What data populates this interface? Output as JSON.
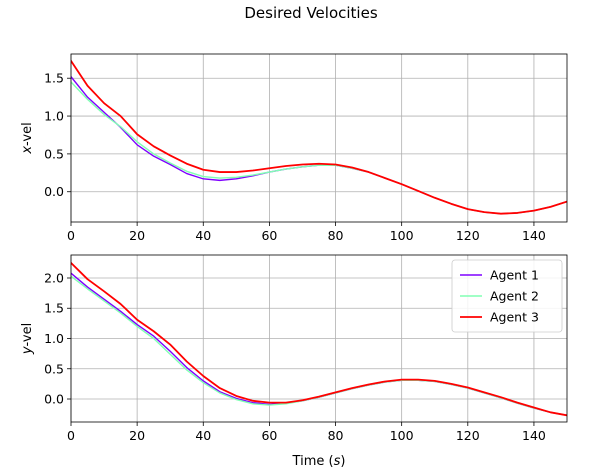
{
  "figure": {
    "title": "Desired Velocities"
  },
  "chart_data": [
    {
      "type": "line",
      "panel": "top",
      "title": "",
      "xlabel": "",
      "ylabel": "x-vel",
      "xlim": [
        0,
        150
      ],
      "ylim": [
        -0.4,
        1.82
      ],
      "xticks": [
        0,
        20,
        40,
        60,
        80,
        100,
        120,
        140
      ],
      "yticks": [
        0.0,
        0.5,
        1.0,
        1.5
      ],
      "grid": true,
      "series": [
        {
          "name": "Agent 1",
          "color": "#7f00ff",
          "points": [
            [
              0,
              1.52
            ],
            [
              5,
              1.25
            ],
            [
              10,
              1.05
            ],
            [
              15,
              0.85
            ],
            [
              20,
              0.62
            ],
            [
              25,
              0.47
            ],
            [
              30,
              0.36
            ],
            [
              35,
              0.24
            ],
            [
              40,
              0.17
            ],
            [
              45,
              0.15
            ],
            [
              50,
              0.17
            ],
            [
              55,
              0.21
            ],
            [
              60,
              0.26
            ],
            [
              65,
              0.3
            ],
            [
              70,
              0.33
            ],
            [
              75,
              0.35
            ],
            [
              80,
              0.35
            ],
            [
              85,
              0.31
            ],
            [
              90,
              0.26
            ],
            [
              95,
              0.18
            ],
            [
              100,
              0.1
            ],
            [
              105,
              0.01
            ],
            [
              110,
              -0.08
            ],
            [
              115,
              -0.16
            ],
            [
              120,
              -0.23
            ],
            [
              125,
              -0.27
            ],
            [
              130,
              -0.29
            ],
            [
              135,
              -0.28
            ],
            [
              140,
              -0.25
            ],
            [
              145,
              -0.2
            ],
            [
              150,
              -0.13
            ]
          ]
        },
        {
          "name": "Agent 2",
          "color": "#80ffb4",
          "points": [
            [
              0,
              1.45
            ],
            [
              5,
              1.22
            ],
            [
              10,
              1.02
            ],
            [
              15,
              0.86
            ],
            [
              20,
              0.66
            ],
            [
              25,
              0.5
            ],
            [
              30,
              0.38
            ],
            [
              35,
              0.27
            ],
            [
              40,
              0.2
            ],
            [
              45,
              0.18
            ],
            [
              50,
              0.19
            ],
            [
              55,
              0.22
            ],
            [
              60,
              0.26
            ],
            [
              65,
              0.3
            ],
            [
              70,
              0.33
            ],
            [
              75,
              0.35
            ],
            [
              80,
              0.35
            ],
            [
              85,
              0.31
            ],
            [
              90,
              0.26
            ],
            [
              95,
              0.18
            ],
            [
              100,
              0.1
            ],
            [
              105,
              0.01
            ],
            [
              110,
              -0.08
            ],
            [
              115,
              -0.16
            ],
            [
              120,
              -0.23
            ],
            [
              125,
              -0.27
            ],
            [
              130,
              -0.29
            ],
            [
              135,
              -0.28
            ],
            [
              140,
              -0.25
            ],
            [
              145,
              -0.2
            ],
            [
              150,
              -0.13
            ]
          ]
        },
        {
          "name": "Agent 3",
          "color": "#ff0000",
          "points": [
            [
              0,
              1.73
            ],
            [
              5,
              1.4
            ],
            [
              10,
              1.17
            ],
            [
              15,
              1.0
            ],
            [
              20,
              0.76
            ],
            [
              25,
              0.6
            ],
            [
              30,
              0.48
            ],
            [
              35,
              0.37
            ],
            [
              40,
              0.29
            ],
            [
              45,
              0.26
            ],
            [
              50,
              0.26
            ],
            [
              55,
              0.28
            ],
            [
              60,
              0.31
            ],
            [
              65,
              0.34
            ],
            [
              70,
              0.36
            ],
            [
              75,
              0.37
            ],
            [
              80,
              0.36
            ],
            [
              85,
              0.32
            ],
            [
              90,
              0.26
            ],
            [
              95,
              0.18
            ],
            [
              100,
              0.1
            ],
            [
              105,
              0.01
            ],
            [
              110,
              -0.08
            ],
            [
              115,
              -0.16
            ],
            [
              120,
              -0.23
            ],
            [
              125,
              -0.27
            ],
            [
              130,
              -0.29
            ],
            [
              135,
              -0.28
            ],
            [
              140,
              -0.25
            ],
            [
              145,
              -0.2
            ],
            [
              150,
              -0.13
            ]
          ]
        }
      ]
    },
    {
      "type": "line",
      "panel": "bottom",
      "title": "",
      "xlabel": "Time (s)",
      "ylabel": "y-vel",
      "xlim": [
        0,
        150
      ],
      "ylim": [
        -0.38,
        2.38
      ],
      "xticks": [
        0,
        20,
        40,
        60,
        80,
        100,
        120,
        140
      ],
      "yticks": [
        0.0,
        0.5,
        1.0,
        1.5,
        2.0
      ],
      "grid": true,
      "legend": "top-right",
      "series": [
        {
          "name": "Agent 1",
          "color": "#7f00ff",
          "points": [
            [
              0,
              2.08
            ],
            [
              5,
              1.85
            ],
            [
              10,
              1.65
            ],
            [
              15,
              1.45
            ],
            [
              20,
              1.23
            ],
            [
              25,
              1.04
            ],
            [
              30,
              0.79
            ],
            [
              35,
              0.52
            ],
            [
              40,
              0.3
            ],
            [
              45,
              0.12
            ],
            [
              50,
              0.01
            ],
            [
              55,
              -0.06
            ],
            [
              60,
              -0.09
            ],
            [
              65,
              -0.07
            ],
            [
              70,
              -0.03
            ],
            [
              75,
              0.03
            ],
            [
              80,
              0.1
            ],
            [
              85,
              0.17
            ],
            [
              90,
              0.23
            ],
            [
              95,
              0.28
            ],
            [
              100,
              0.31
            ],
            [
              105,
              0.31
            ],
            [
              110,
              0.29
            ],
            [
              115,
              0.24
            ],
            [
              120,
              0.18
            ],
            [
              125,
              0.1
            ],
            [
              130,
              0.02
            ],
            [
              135,
              -0.07
            ],
            [
              140,
              -0.15
            ],
            [
              145,
              -0.22
            ],
            [
              150,
              -0.27
            ]
          ]
        },
        {
          "name": "Agent 2",
          "color": "#80ffb4",
          "points": [
            [
              0,
              2.03
            ],
            [
              5,
              1.82
            ],
            [
              10,
              1.62
            ],
            [
              15,
              1.42
            ],
            [
              20,
              1.2
            ],
            [
              25,
              1.0
            ],
            [
              30,
              0.74
            ],
            [
              35,
              0.48
            ],
            [
              40,
              0.27
            ],
            [
              45,
              0.1
            ],
            [
              50,
              -0.01
            ],
            [
              55,
              -0.08
            ],
            [
              60,
              -0.1
            ],
            [
              65,
              -0.08
            ],
            [
              70,
              -0.03
            ],
            [
              75,
              0.03
            ],
            [
              80,
              0.1
            ],
            [
              85,
              0.17
            ],
            [
              90,
              0.23
            ],
            [
              95,
              0.28
            ],
            [
              100,
              0.31
            ],
            [
              105,
              0.31
            ],
            [
              110,
              0.29
            ],
            [
              115,
              0.24
            ],
            [
              120,
              0.18
            ],
            [
              125,
              0.1
            ],
            [
              130,
              0.02
            ],
            [
              135,
              -0.07
            ],
            [
              140,
              -0.15
            ],
            [
              145,
              -0.22
            ],
            [
              150,
              -0.27
            ]
          ]
        },
        {
          "name": "Agent 3",
          "color": "#ff0000",
          "points": [
            [
              0,
              2.25
            ],
            [
              5,
              1.98
            ],
            [
              10,
              1.78
            ],
            [
              15,
              1.57
            ],
            [
              20,
              1.31
            ],
            [
              25,
              1.12
            ],
            [
              30,
              0.9
            ],
            [
              35,
              0.62
            ],
            [
              40,
              0.38
            ],
            [
              45,
              0.18
            ],
            [
              50,
              0.05
            ],
            [
              55,
              -0.03
            ],
            [
              60,
              -0.06
            ],
            [
              65,
              -0.06
            ],
            [
              70,
              -0.02
            ],
            [
              75,
              0.04
            ],
            [
              80,
              0.11
            ],
            [
              85,
              0.18
            ],
            [
              90,
              0.24
            ],
            [
              95,
              0.29
            ],
            [
              100,
              0.32
            ],
            [
              105,
              0.32
            ],
            [
              110,
              0.3
            ],
            [
              115,
              0.25
            ],
            [
              120,
              0.19
            ],
            [
              125,
              0.11
            ],
            [
              130,
              0.03
            ],
            [
              135,
              -0.06
            ],
            [
              140,
              -0.14
            ],
            [
              145,
              -0.22
            ],
            [
              150,
              -0.27
            ]
          ]
        }
      ]
    }
  ]
}
